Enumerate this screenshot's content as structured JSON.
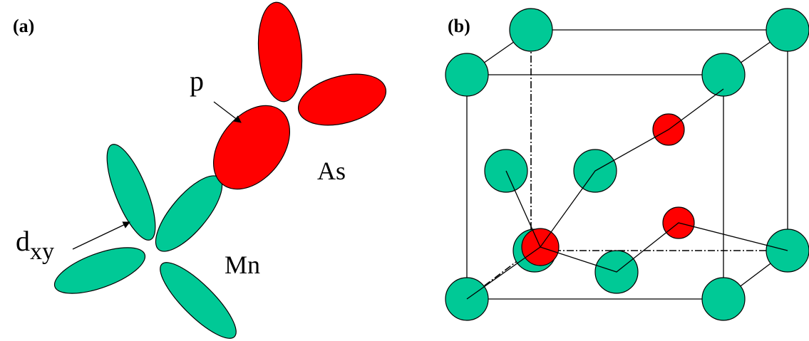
{
  "panels": [
    {
      "label": "(a)"
    },
    {
      "label": "(b)"
    }
  ],
  "labels": {
    "p": "p",
    "as": "As",
    "mn": "Mn",
    "dxy": {
      "main": "d",
      "sub": "xy"
    }
  }
}
